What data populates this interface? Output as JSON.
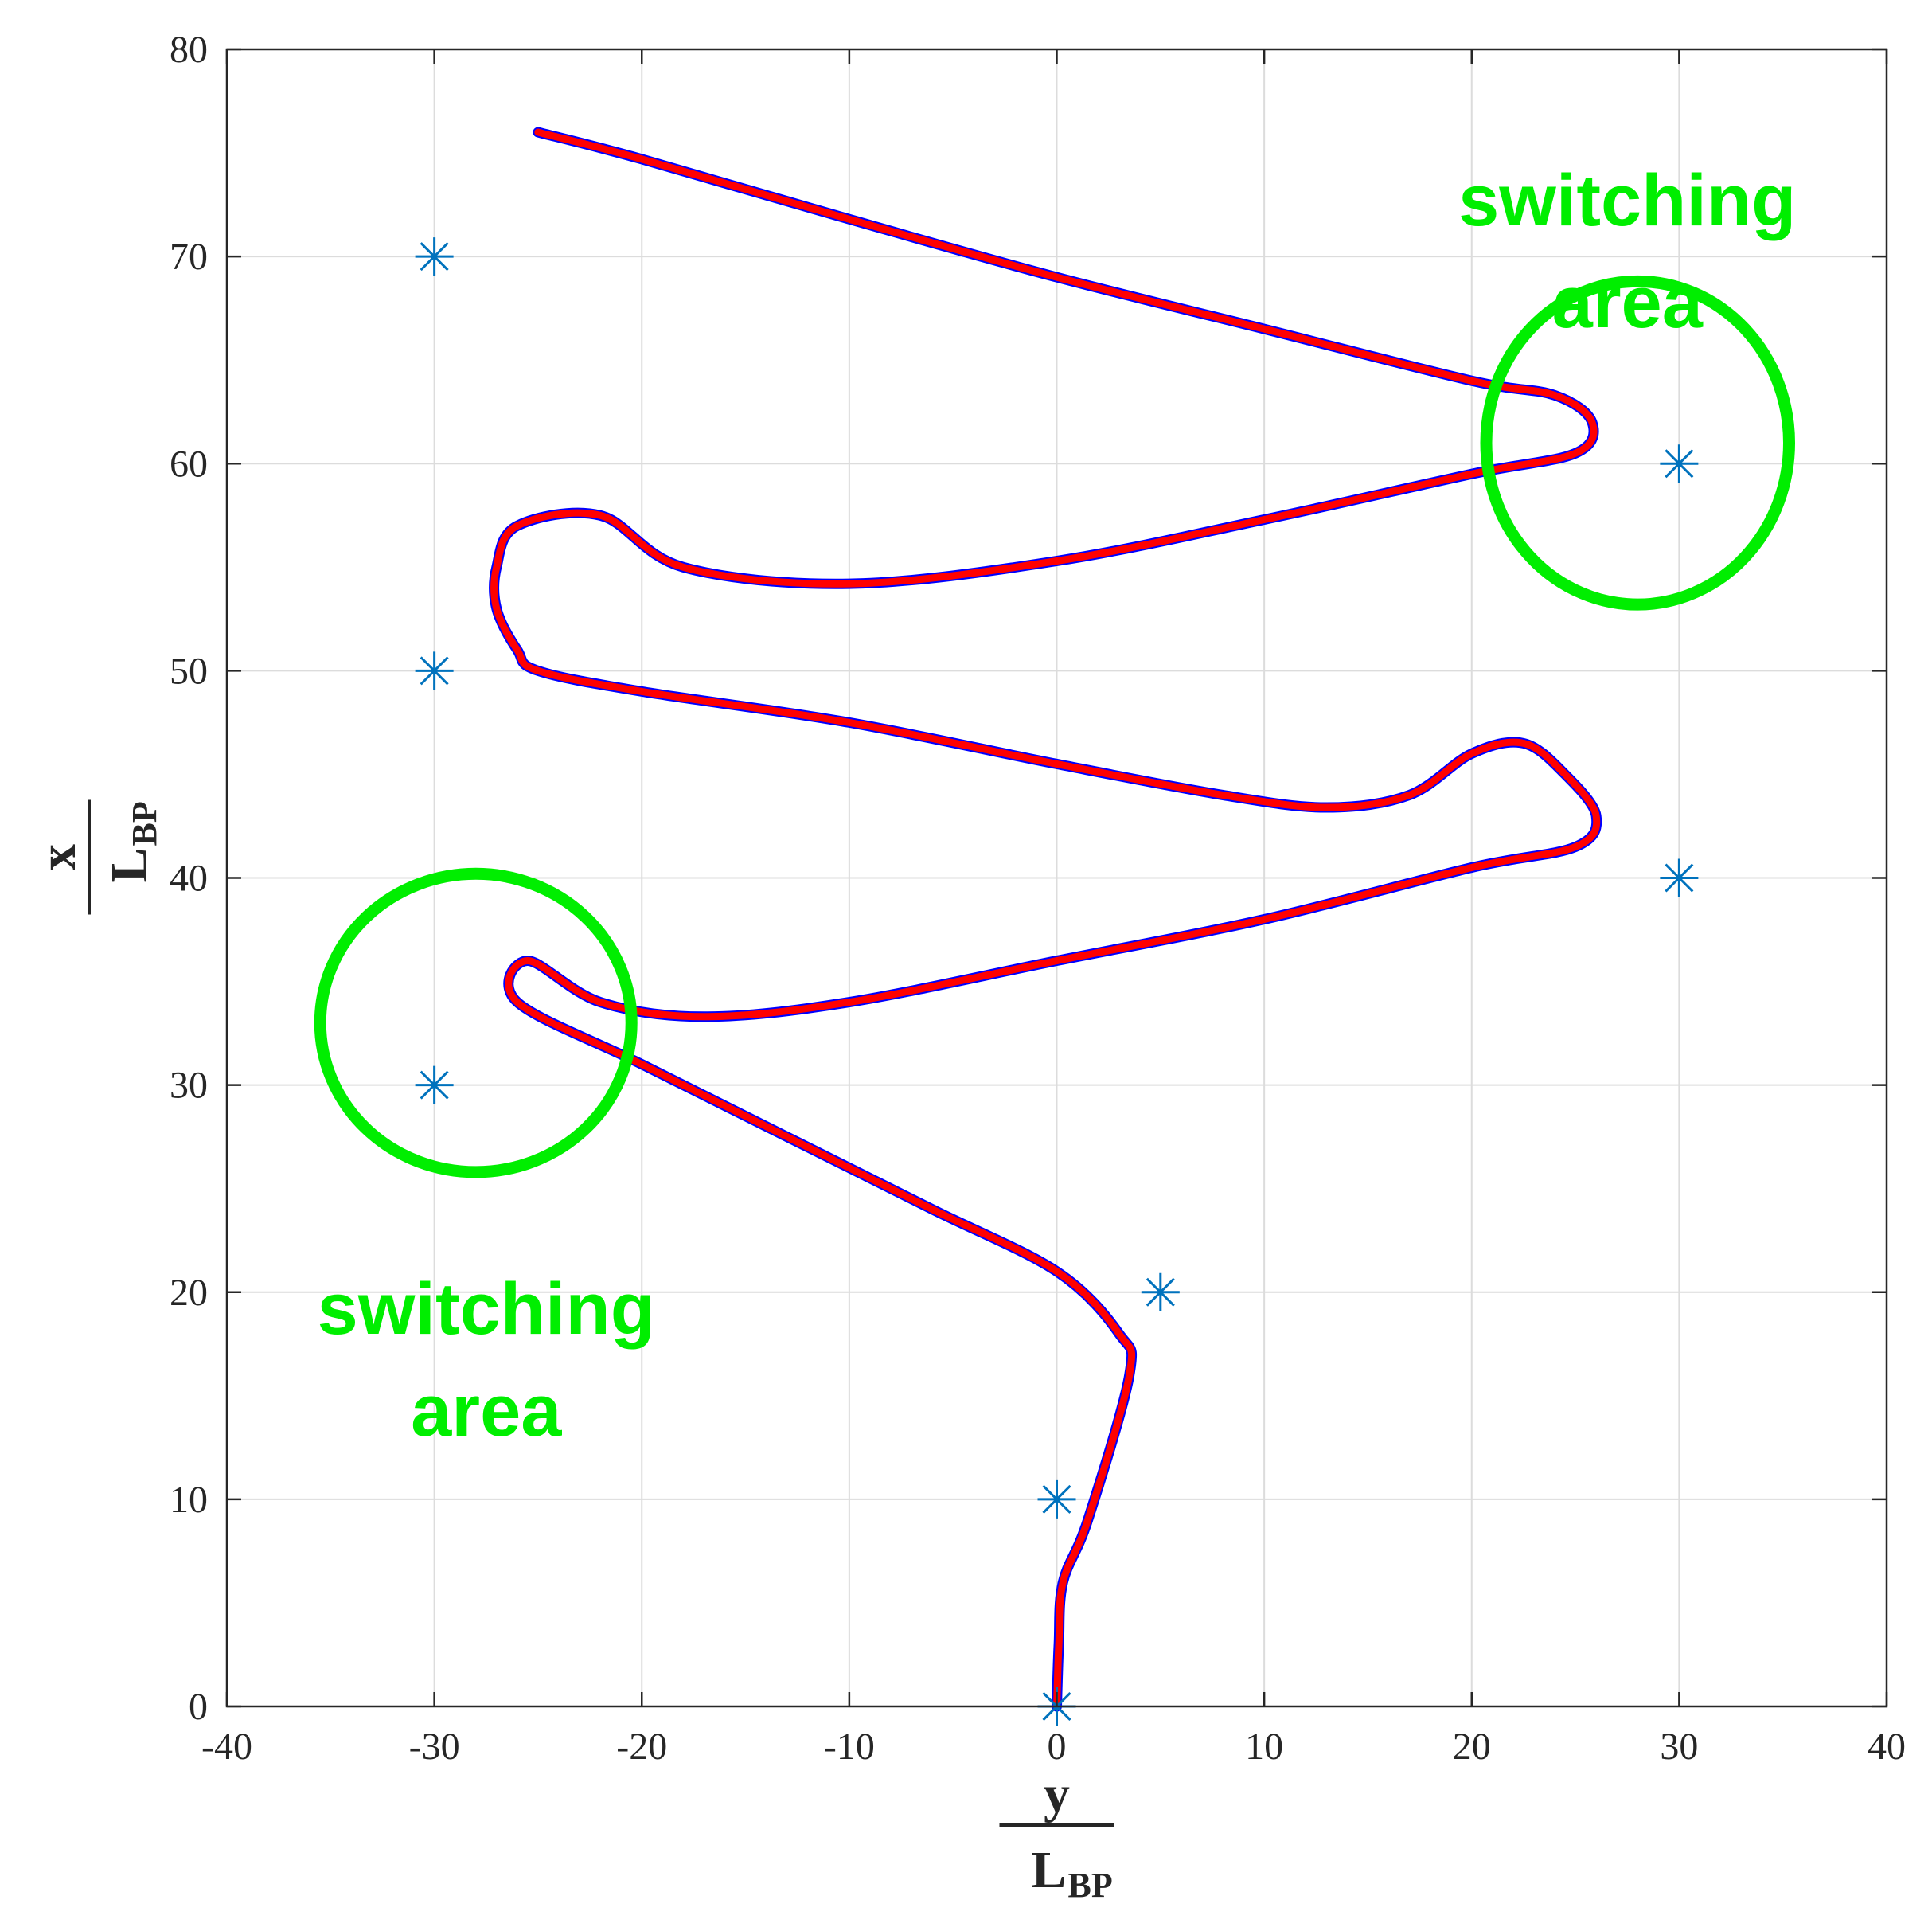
{
  "chart_data": {
    "type": "line",
    "xaxis": {
      "label_num": "y",
      "label_den": "L",
      "label_den_sub": "BP",
      "range": [
        -40,
        40
      ],
      "ticks": [
        -40,
        -30,
        -20,
        -10,
        0,
        10,
        20,
        30,
        40
      ],
      "tick_labels": [
        "-40",
        "-30",
        "-20",
        "-10",
        "0",
        "10",
        "20",
        "30",
        "40"
      ]
    },
    "yaxis": {
      "label_num": "x",
      "label_den": "L",
      "label_den_sub": "BP",
      "range": [
        0,
        80
      ],
      "ticks": [
        0,
        10,
        20,
        30,
        40,
        50,
        60,
        70,
        80
      ],
      "tick_labels": [
        "0",
        "10",
        "20",
        "30",
        "40",
        "50",
        "60",
        "70",
        "80"
      ]
    },
    "grid": true,
    "series": [
      {
        "kind": "waypoints",
        "marker": "asterisk",
        "color": "#0072BD",
        "points": [
          [
            0,
            0
          ],
          [
            0,
            10
          ],
          [
            5,
            20
          ],
          [
            -30,
            30
          ],
          [
            30,
            40
          ],
          [
            -30,
            50
          ],
          [
            30,
            60
          ],
          [
            -30,
            70
          ]
        ]
      },
      {
        "kind": "reference-path",
        "color": "#0000ff",
        "points": [
          [
            0,
            0
          ],
          [
            0.1,
            3
          ],
          [
            0.3,
            6
          ],
          [
            1.5,
            9
          ],
          [
            3.5,
            16
          ],
          [
            3,
            18
          ],
          [
            0,
            21
          ],
          [
            -6,
            24
          ],
          [
            -13,
            27.5
          ],
          [
            -20,
            31
          ],
          [
            -26,
            34
          ],
          [
            -25.5,
            36
          ],
          [
            -22,
            34
          ],
          [
            -17,
            33.3
          ],
          [
            -10,
            34
          ],
          [
            0,
            36
          ],
          [
            10,
            38
          ],
          [
            20,
            40.5
          ],
          [
            25,
            41.5
          ],
          [
            26,
            43
          ],
          [
            24.5,
            45
          ],
          [
            22.5,
            46.5
          ],
          [
            20,
            46
          ],
          [
            17,
            44
          ],
          [
            13,
            43.4
          ],
          [
            8,
            44
          ],
          [
            0,
            45.5
          ],
          [
            -10,
            47.5
          ],
          [
            -20,
            49
          ],
          [
            -25,
            50
          ],
          [
            -26,
            51
          ],
          [
            -27,
            53
          ],
          [
            -27,
            55
          ],
          [
            -26,
            57
          ],
          [
            -22,
            57.5
          ],
          [
            -18,
            55
          ],
          [
            -10,
            54.2
          ],
          [
            0,
            55.3
          ],
          [
            10,
            57.3
          ],
          [
            20,
            59.5
          ],
          [
            25,
            60.5
          ],
          [
            25.8,
            62
          ],
          [
            24,
            63.3
          ],
          [
            20,
            64
          ],
          [
            10,
            66.5
          ],
          [
            0,
            69
          ],
          [
            -10,
            71.8
          ],
          [
            -20,
            74.7
          ],
          [
            -25,
            76
          ]
        ]
      },
      {
        "kind": "trajectory",
        "color": "#ff0000",
        "points": [
          [
            0,
            0
          ],
          [
            0.1,
            3
          ],
          [
            0.3,
            6
          ],
          [
            1.5,
            9
          ],
          [
            3.5,
            16
          ],
          [
            3,
            18
          ],
          [
            0,
            21
          ],
          [
            -6,
            24
          ],
          [
            -13,
            27.5
          ],
          [
            -20,
            31
          ],
          [
            -26,
            34
          ],
          [
            -25.5,
            36
          ],
          [
            -22,
            34
          ],
          [
            -17,
            33.3
          ],
          [
            -10,
            34
          ],
          [
            0,
            36
          ],
          [
            10,
            38
          ],
          [
            20,
            40.5
          ],
          [
            25,
            41.5
          ],
          [
            26,
            43
          ],
          [
            24.5,
            45
          ],
          [
            22.5,
            46.5
          ],
          [
            20,
            46
          ],
          [
            17,
            44
          ],
          [
            13,
            43.4
          ],
          [
            8,
            44
          ],
          [
            0,
            45.5
          ],
          [
            -10,
            47.5
          ],
          [
            -20,
            49
          ],
          [
            -25,
            50
          ],
          [
            -26,
            51
          ],
          [
            -27,
            53
          ],
          [
            -27,
            55
          ],
          [
            -26,
            57
          ],
          [
            -22,
            57.5
          ],
          [
            -18,
            55
          ],
          [
            -10,
            54.2
          ],
          [
            0,
            55.3
          ],
          [
            10,
            57.3
          ],
          [
            20,
            59.5
          ],
          [
            25,
            60.5
          ],
          [
            25.8,
            62
          ],
          [
            24,
            63.3
          ],
          [
            20,
            64
          ],
          [
            10,
            66.5
          ],
          [
            0,
            69
          ],
          [
            -10,
            71.8
          ],
          [
            -20,
            74.7
          ],
          [
            -25,
            76
          ]
        ]
      }
    ],
    "annotations": [
      {
        "kind": "circle",
        "center": [
          28,
          61
        ],
        "radius_x": 7.3,
        "radius_y": 7.8,
        "color": "#00ee00"
      },
      {
        "kind": "circle",
        "center": [
          -28,
          33
        ],
        "radius_x": 7.5,
        "radius_y": 7.2,
        "color": "#00ee00"
      },
      {
        "kind": "text",
        "lines": [
          "switching",
          "area"
        ],
        "at": [
          27.5,
          71.5
        ],
        "color": "#00ee00"
      },
      {
        "kind": "text",
        "lines": [
          "switching",
          "area"
        ],
        "at": [
          -27.5,
          18
        ],
        "color": "#00ee00"
      }
    ]
  }
}
